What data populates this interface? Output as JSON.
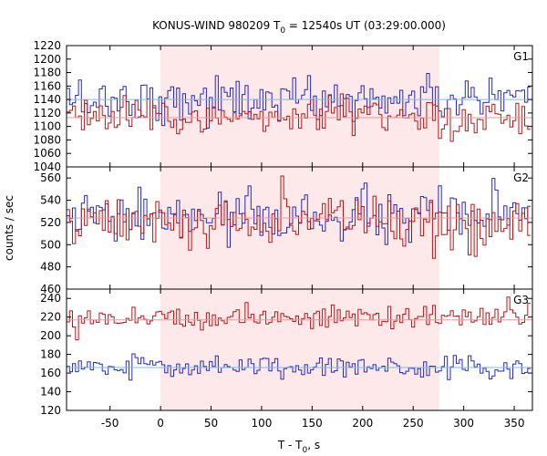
{
  "chart_data": {
    "type": "line",
    "title_main": "KONUS-WIND 980209 T",
    "title_sub": "0",
    "title_rest": " = 12540s UT (03:29:00.000)",
    "xlabel_main": "T - T",
    "xlabel_sub": "0",
    "xlabel_rest": ", s",
    "ylabel": "counts / sec",
    "xlim": [
      -93,
      368
    ],
    "x_ticks": [
      -50,
      0,
      50,
      100,
      150,
      200,
      250,
      300,
      350
    ],
    "interval": [
      0,
      276
    ],
    "colors": {
      "interval_fill": "#fde8ea",
      "series_red": "#b01a1a",
      "series_blue": "#2a2ab8",
      "fit_red": "#e89aa0",
      "fit_blue": "#77bdf0",
      "frame": "#000000"
    },
    "bin_width_s": 2.944,
    "panels": [
      {
        "label": "G1",
        "ylim": [
          1040,
          1220
        ],
        "y_ticks": [
          1040,
          1060,
          1080,
          1100,
          1120,
          1140,
          1160,
          1180,
          1200,
          1220
        ],
        "series": [
          {
            "color_key": "series_blue",
            "mean": 1140,
            "sd": 17,
            "fit": 1140
          },
          {
            "color_key": "series_red",
            "mean": 1114,
            "sd": 15,
            "fit": 1113
          }
        ]
      },
      {
        "label": "G2",
        "ylim": [
          460,
          570
        ],
        "y_ticks": [
          460,
          480,
          500,
          520,
          540,
          560
        ],
        "series": [
          {
            "color_key": "series_blue",
            "mean": 524,
            "sd": 12,
            "fit": 524
          },
          {
            "color_key": "series_red",
            "mean": 521,
            "sd": 12,
            "fit": 524
          }
        ]
      },
      {
        "label": "G3",
        "ylim": [
          120,
          250
        ],
        "y_ticks": [
          120,
          140,
          160,
          180,
          200,
          220,
          240
        ],
        "series": [
          {
            "color_key": "series_red",
            "mean": 220,
            "sd": 7,
            "fit": 217
          },
          {
            "color_key": "series_blue",
            "mean": 167,
            "sd": 6,
            "fit": 166
          }
        ]
      }
    ]
  }
}
